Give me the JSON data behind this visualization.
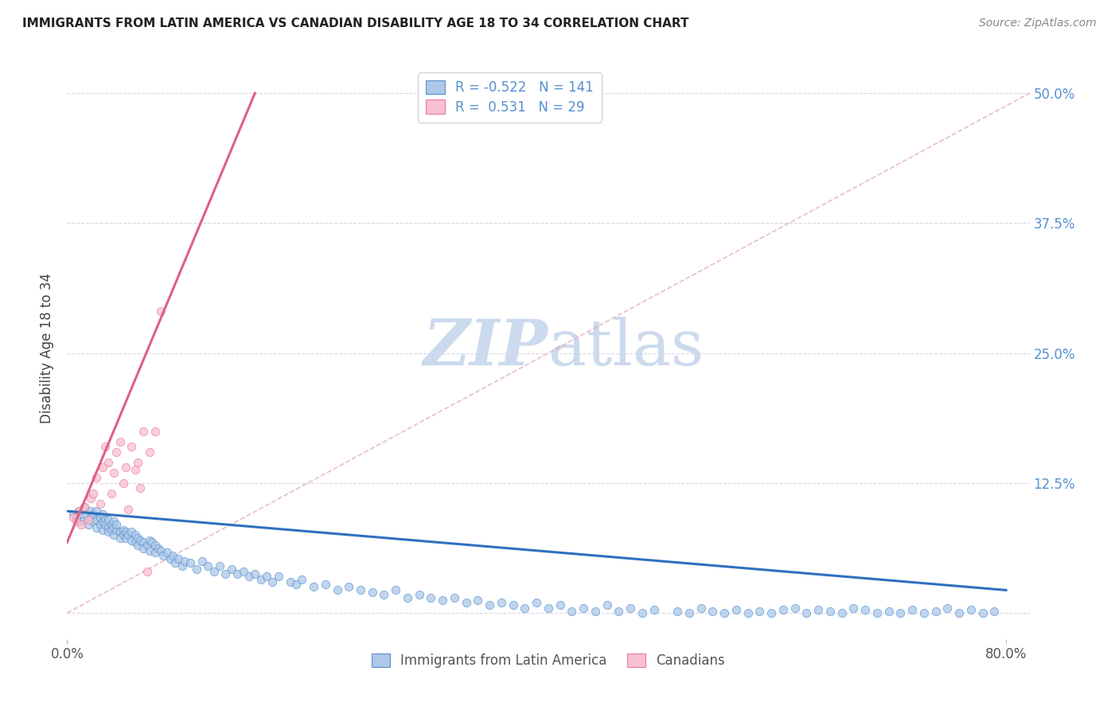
{
  "title": "IMMIGRANTS FROM LATIN AMERICA VS CANADIAN DISABILITY AGE 18 TO 34 CORRELATION CHART",
  "source": "Source: ZipAtlas.com",
  "ylabel": "Disability Age 18 to 34",
  "xlim": [
    0.0,
    0.82
  ],
  "ylim": [
    -0.025,
    0.535
  ],
  "legend_label_blue": "Immigrants from Latin America",
  "legend_label_pink": "Canadians",
  "R_blue": "-0.522",
  "N_blue": "141",
  "R_pink": "0.531",
  "N_pink": "29",
  "blue_color": "#adc8e8",
  "blue_edge_color": "#5590d0",
  "pink_color": "#f8c0d0",
  "pink_edge_color": "#e878a0",
  "blue_line_color": "#3070c0",
  "pink_line_color": "#e06080",
  "ref_line_color": "#e0a0b8",
  "title_color": "#222222",
  "right_tick_color": "#5590d0",
  "grid_color": "#d8d8e8",
  "watermark_color": "#ccdaee",
  "yticks": [
    0.0,
    0.125,
    0.25,
    0.375,
    0.5
  ],
  "ytick_labels": [
    "",
    "12.5%",
    "25.0%",
    "37.5%",
    "50.0%"
  ],
  "blue_scatter_x": [
    0.005,
    0.008,
    0.01,
    0.012,
    0.015,
    0.015,
    0.016,
    0.018,
    0.02,
    0.02,
    0.022,
    0.022,
    0.025,
    0.025,
    0.025,
    0.028,
    0.028,
    0.03,
    0.03,
    0.03,
    0.032,
    0.032,
    0.035,
    0.035,
    0.035,
    0.038,
    0.038,
    0.04,
    0.04,
    0.04,
    0.042,
    0.042,
    0.045,
    0.045,
    0.048,
    0.048,
    0.05,
    0.05,
    0.052,
    0.055,
    0.055,
    0.058,
    0.058,
    0.06,
    0.06,
    0.062,
    0.065,
    0.065,
    0.068,
    0.07,
    0.07,
    0.072,
    0.075,
    0.075,
    0.078,
    0.08,
    0.082,
    0.085,
    0.088,
    0.09,
    0.092,
    0.095,
    0.098,
    0.1,
    0.105,
    0.11,
    0.115,
    0.12,
    0.125,
    0.13,
    0.135,
    0.14,
    0.145,
    0.15,
    0.155,
    0.16,
    0.165,
    0.17,
    0.175,
    0.18,
    0.19,
    0.195,
    0.2,
    0.21,
    0.22,
    0.23,
    0.24,
    0.25,
    0.26,
    0.27,
    0.28,
    0.29,
    0.3,
    0.31,
    0.32,
    0.33,
    0.34,
    0.35,
    0.36,
    0.37,
    0.38,
    0.39,
    0.4,
    0.41,
    0.42,
    0.43,
    0.44,
    0.45,
    0.46,
    0.47,
    0.48,
    0.49,
    0.5,
    0.52,
    0.53,
    0.54,
    0.55,
    0.56,
    0.57,
    0.58,
    0.59,
    0.6,
    0.61,
    0.62,
    0.63,
    0.64,
    0.65,
    0.66,
    0.67,
    0.68,
    0.69,
    0.7,
    0.71,
    0.72,
    0.73,
    0.74,
    0.75,
    0.76,
    0.77,
    0.78,
    0.79
  ],
  "blue_scatter_y": [
    0.095,
    0.092,
    0.098,
    0.088,
    0.102,
    0.09,
    0.095,
    0.085,
    0.092,
    0.098,
    0.088,
    0.095,
    0.09,
    0.082,
    0.098,
    0.085,
    0.092,
    0.088,
    0.095,
    0.08,
    0.09,
    0.085,
    0.082,
    0.09,
    0.078,
    0.085,
    0.08,
    0.088,
    0.082,
    0.075,
    0.08,
    0.085,
    0.078,
    0.072,
    0.08,
    0.075,
    0.078,
    0.072,
    0.075,
    0.078,
    0.07,
    0.075,
    0.068,
    0.072,
    0.065,
    0.07,
    0.068,
    0.062,
    0.065,
    0.07,
    0.06,
    0.068,
    0.065,
    0.058,
    0.062,
    0.06,
    0.055,
    0.058,
    0.052,
    0.055,
    0.048,
    0.052,
    0.045,
    0.05,
    0.048,
    0.042,
    0.05,
    0.045,
    0.04,
    0.045,
    0.038,
    0.042,
    0.038,
    0.04,
    0.035,
    0.038,
    0.032,
    0.035,
    0.03,
    0.035,
    0.03,
    0.028,
    0.032,
    0.025,
    0.028,
    0.022,
    0.025,
    0.022,
    0.02,
    0.018,
    0.022,
    0.015,
    0.018,
    0.015,
    0.012,
    0.015,
    0.01,
    0.012,
    0.008,
    0.01,
    0.008,
    0.005,
    0.01,
    0.005,
    0.008,
    0.002,
    0.005,
    0.002,
    0.008,
    0.002,
    0.005,
    0.0,
    0.003,
    0.002,
    0.0,
    0.005,
    0.002,
    0.0,
    0.003,
    0.0,
    0.002,
    0.0,
    0.003,
    0.005,
    0.0,
    0.003,
    0.002,
    0.0,
    0.005,
    0.003,
    0.0,
    0.002,
    0.0,
    0.003,
    0.0,
    0.002,
    0.005,
    0.0,
    0.003,
    0.0,
    0.002
  ],
  "pink_scatter_x": [
    0.005,
    0.008,
    0.01,
    0.012,
    0.015,
    0.018,
    0.02,
    0.022,
    0.025,
    0.028,
    0.03,
    0.032,
    0.035,
    0.038,
    0.04,
    0.042,
    0.045,
    0.048,
    0.05,
    0.052,
    0.055,
    0.058,
    0.06,
    0.062,
    0.065,
    0.068,
    0.07,
    0.075,
    0.08
  ],
  "pink_scatter_y": [
    0.092,
    0.088,
    0.098,
    0.085,
    0.102,
    0.09,
    0.11,
    0.115,
    0.13,
    0.105,
    0.14,
    0.16,
    0.145,
    0.115,
    0.135,
    0.155,
    0.165,
    0.125,
    0.14,
    0.1,
    0.16,
    0.138,
    0.145,
    0.12,
    0.175,
    0.04,
    0.155,
    0.175,
    0.29
  ],
  "blue_line_x0": 0.0,
  "blue_line_y0": 0.098,
  "blue_line_x1": 0.8,
  "blue_line_y1": 0.022,
  "pink_line_x0": 0.0,
  "pink_line_y0": 0.068,
  "pink_line_x1": 0.16,
  "pink_line_y1": 0.5,
  "ref_line_x0": 0.0,
  "ref_line_y0": 0.0,
  "ref_line_x1": 0.82,
  "ref_line_y1": 0.5
}
